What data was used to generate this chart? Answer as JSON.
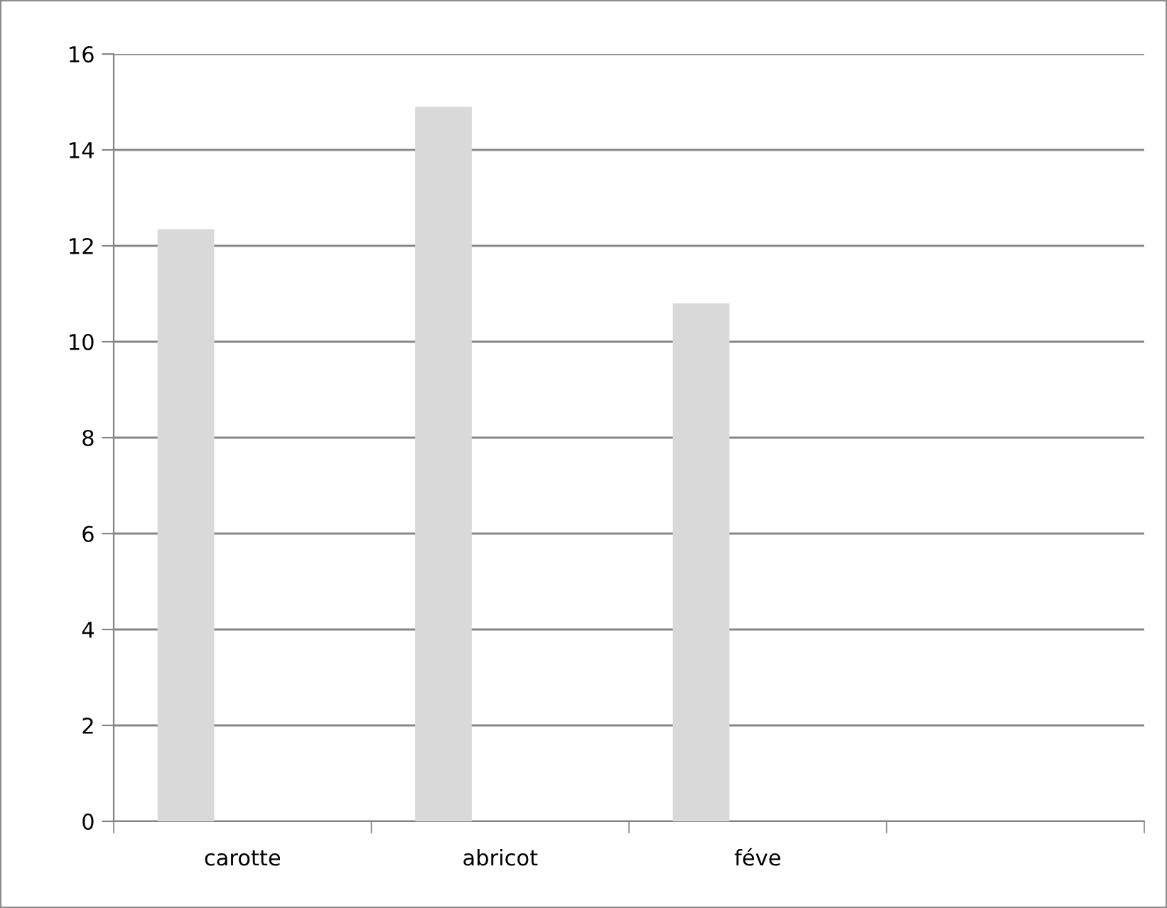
{
  "chart_data": {
    "type": "bar",
    "categories": [
      "carotte",
      "abricot",
      "féve",
      null
    ],
    "values": [
      12.35,
      14.9,
      10.8,
      null
    ],
    "color": "#d9d9d9",
    "ylim": [
      0,
      16
    ],
    "yticks": [
      0,
      2,
      4,
      6,
      8,
      10,
      12,
      14,
      16
    ],
    "grid": "y",
    "legend": false
  }
}
